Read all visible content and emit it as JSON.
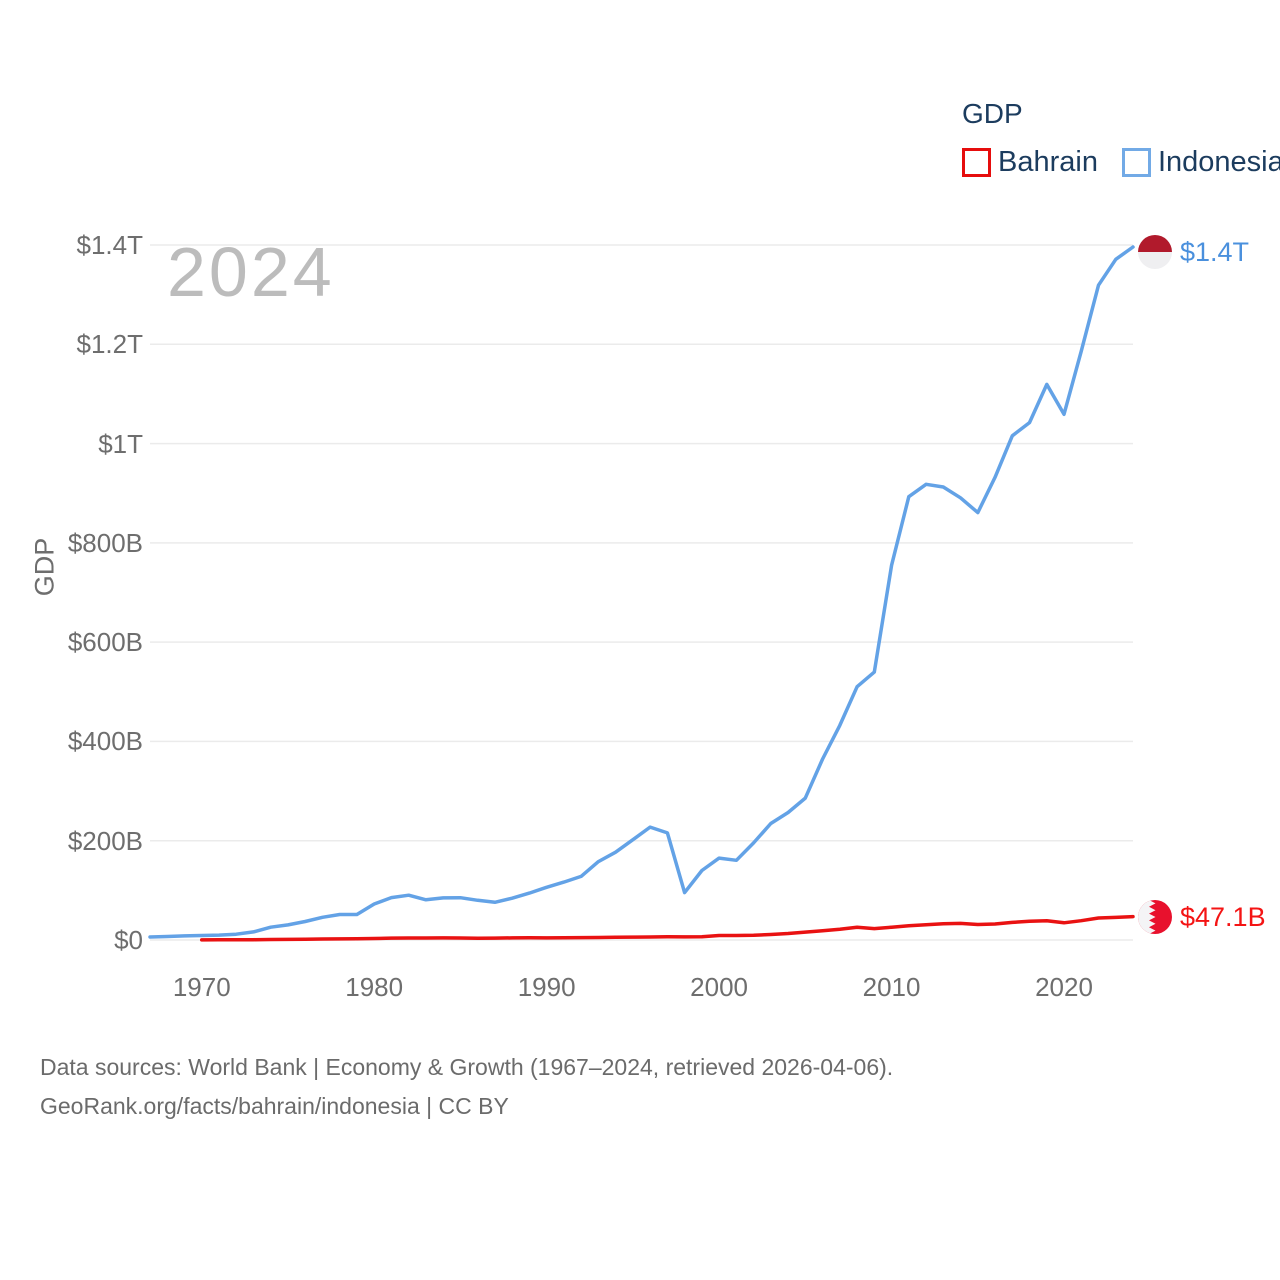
{
  "legend": {
    "title": "GDP",
    "items": [
      {
        "label": "Bahrain",
        "color": "#e60d0d"
      },
      {
        "label": "Indonesia",
        "color": "#72aae6"
      }
    ]
  },
  "watermark": "2024",
  "end_labels": {
    "indonesia": {
      "text": "$1.4T",
      "color": "#4a90dd"
    },
    "bahrain": {
      "text": "$47.1B",
      "color": "#f41414"
    }
  },
  "flags": {
    "indonesia": {
      "red": "#b11a2c",
      "white": "#efeff1"
    },
    "bahrain": {
      "red": "#e8112d",
      "white": "#f4f4f6"
    }
  },
  "footer": {
    "line1": "Data sources: World Bank | Economy & Growth (1967–2024, retrieved 2026-04-06).",
    "line2": "GeoRank.org/facts/bahrain/indonesia | CC BY"
  },
  "chart_data": {
    "type": "line",
    "title": "GDP",
    "ylabel": "GDP",
    "xlabel": "",
    "unit": "billions of current USD",
    "x_range": [
      1967,
      2024
    ],
    "y_max_billions": 1400,
    "grid": "horizontal",
    "legend_position": "top-right",
    "gridline_color": "#ebebeb",
    "y_ticks": [
      {
        "value": 0,
        "label": "$0"
      },
      {
        "value": 200,
        "label": "$200B"
      },
      {
        "value": 400,
        "label": "$400B"
      },
      {
        "value": 600,
        "label": "$600B"
      },
      {
        "value": 800,
        "label": "$800B"
      },
      {
        "value": 1000,
        "label": "$1T"
      },
      {
        "value": 1200,
        "label": "$1.2T"
      },
      {
        "value": 1400,
        "label": "$1.4T"
      }
    ],
    "x_ticks": [
      {
        "value": 1970,
        "label": "1970"
      },
      {
        "value": 1980,
        "label": "1980"
      },
      {
        "value": 1990,
        "label": "1990"
      },
      {
        "value": 2000,
        "label": "2000"
      },
      {
        "value": 2010,
        "label": "2010"
      },
      {
        "value": 2020,
        "label": "2020"
      }
    ],
    "series": [
      {
        "name": "Bahrain",
        "color": "#e91212",
        "end_value_label": "$47.1B",
        "values": [
          null,
          null,
          null,
          0.3,
          0.35,
          0.45,
          0.6,
          1.0,
          1.3,
          1.7,
          2.0,
          2.2,
          2.7,
          3.07,
          3.82,
          4.0,
          4.1,
          4.3,
          4.0,
          3.6,
          3.9,
          4.2,
          4.4,
          4.23,
          4.5,
          4.8,
          5.1,
          5.6,
          5.85,
          6.1,
          6.35,
          6.18,
          6.62,
          9.06,
          8.98,
          9.65,
          11.07,
          13.15,
          15.97,
          18.51,
          21.73,
          25.71,
          22.94,
          25.71,
          28.78,
          30.75,
          32.54,
          33.39,
          31.13,
          32.31,
          35.47,
          37.8,
          38.65,
          34.72,
          38.87,
          44.39,
          45.5,
          47.1
        ]
      },
      {
        "name": "Indonesia",
        "color": "#63a2e6",
        "end_value_label": "$1.4T",
        "values": [
          5.98,
          7.08,
          8.34,
          9.15,
          9.9,
          11.61,
          16.27,
          25.8,
          30.46,
          37.27,
          45.79,
          51.46,
          51.39,
          72.48,
          85.5,
          90.16,
          81.05,
          84.84,
          85.29,
          79.95,
          75.93,
          84.3,
          94.45,
          106.14,
          116.62,
          128.03,
          158.01,
          176.89,
          202.13,
          227.37,
          215.75,
          95.45,
          140.0,
          165.02,
          160.45,
          195.66,
          234.77,
          256.84,
          285.87,
          364.57,
          432.22,
          510.23,
          539.58,
          755.09,
          892.97,
          917.87,
          912.52,
          890.81,
          860.85,
          931.88,
          1015.62,
          1042.27,
          1119.1,
          1059.05,
          1186.51,
          1319.1,
          1371.17,
          1396.0
        ]
      }
    ]
  }
}
